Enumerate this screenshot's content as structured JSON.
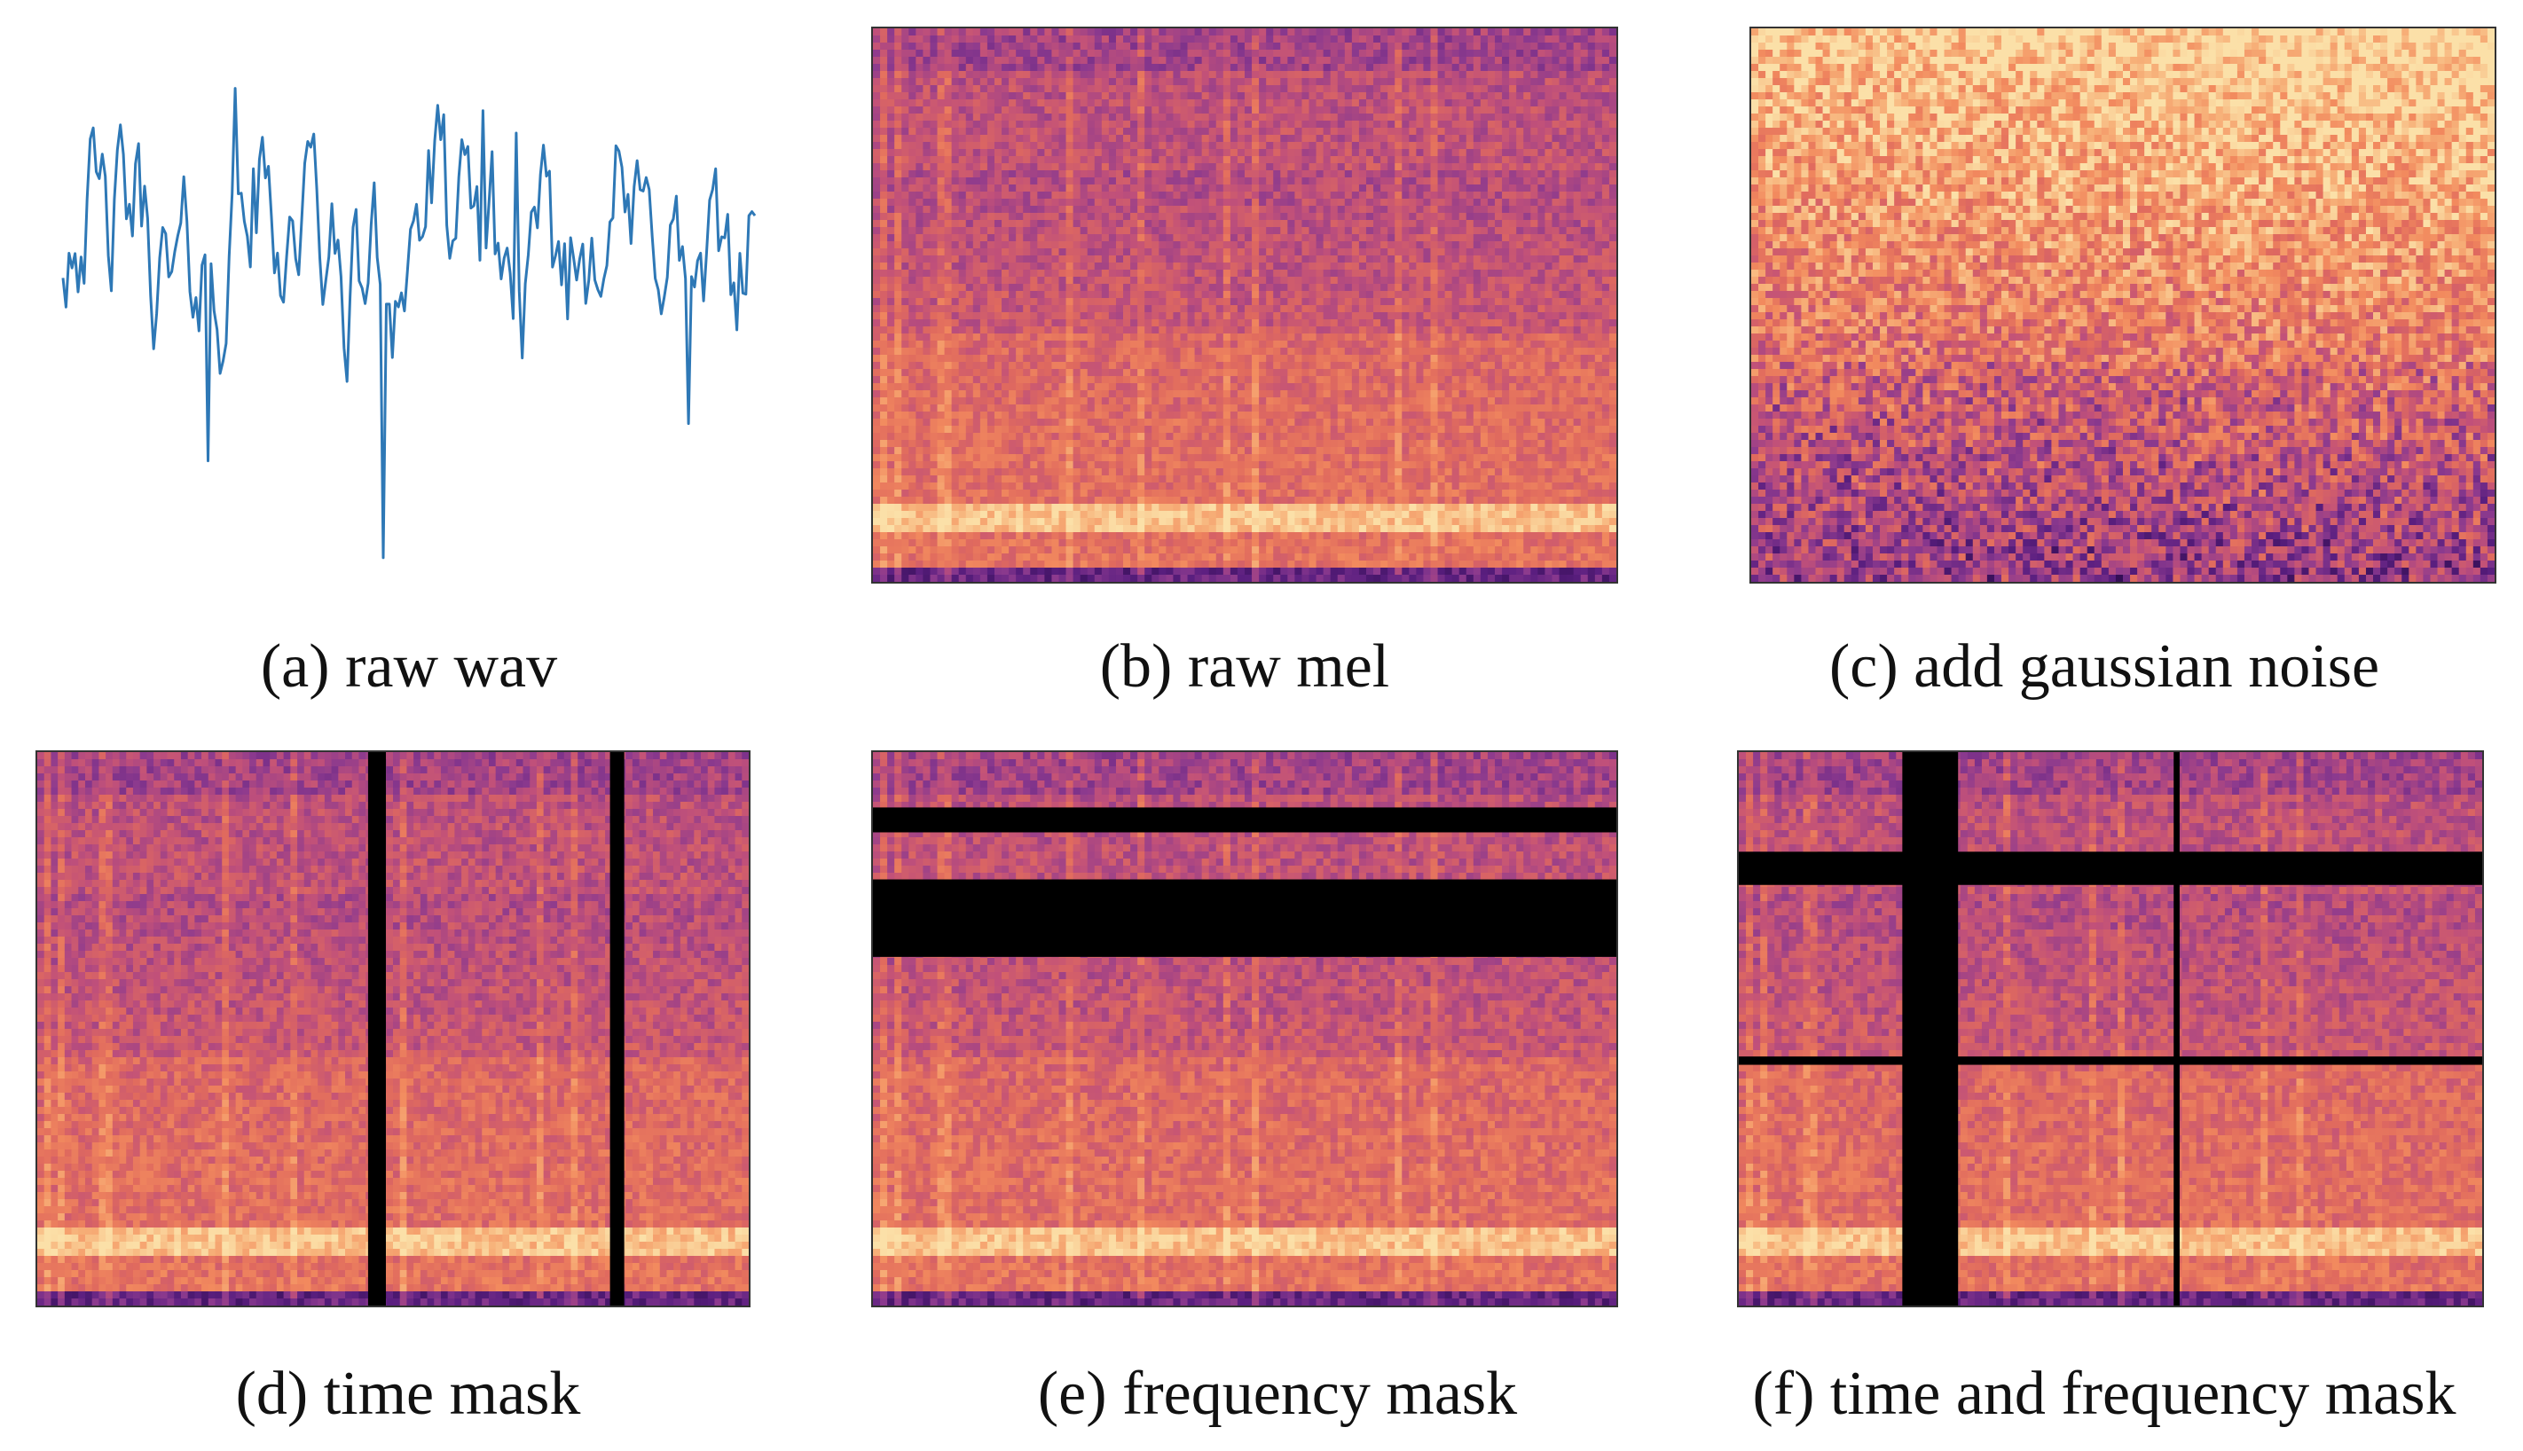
{
  "figure": {
    "panels": [
      {
        "id": "a",
        "caption": "(a) raw wav",
        "kind": "waveform",
        "line_color": "#2e78b6"
      },
      {
        "id": "b",
        "caption": "(b) raw mel",
        "kind": "spectrogram",
        "noise": false,
        "time_masks": [],
        "freq_masks": []
      },
      {
        "id": "c",
        "caption": "(c) add gaussian noise",
        "kind": "spectrogram",
        "noise": true,
        "time_masks": [],
        "freq_masks": []
      },
      {
        "id": "d",
        "caption": "(d) time mask",
        "kind": "spectrogram",
        "noise": false,
        "time_masks": [
          [
            0.465,
            0.49
          ],
          [
            0.805,
            0.825
          ]
        ],
        "freq_masks": []
      },
      {
        "id": "e",
        "caption": "(e) frequency mask",
        "kind": "spectrogram",
        "noise": false,
        "time_masks": [],
        "freq_masks": [
          [
            0.1,
            0.145
          ],
          [
            0.23,
            0.37
          ]
        ]
      },
      {
        "id": "f",
        "caption": "(f) time and frequency mask",
        "kind": "spectrogram",
        "noise": false,
        "time_masks": [
          [
            0.22,
            0.295
          ],
          [
            0.585,
            0.593
          ]
        ],
        "freq_masks": [
          [
            0.18,
            0.24
          ],
          [
            0.55,
            0.565
          ]
        ]
      }
    ],
    "colormap": [
      "#2a0a4a",
      "#5b1f80",
      "#8c3a8e",
      "#c0507a",
      "#e06a5e",
      "#f28a5e",
      "#f7b27a",
      "#fbe0a8"
    ],
    "mask_color": "#000000"
  }
}
